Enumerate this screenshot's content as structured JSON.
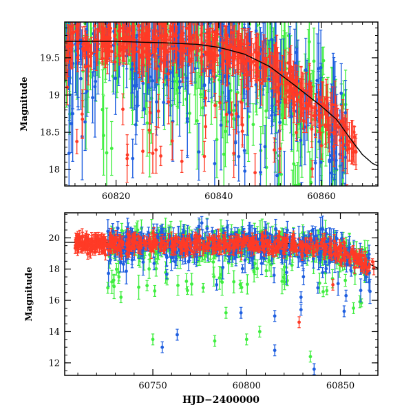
{
  "chart_data": [
    {
      "type": "scatter",
      "panel": "top",
      "title": "",
      "xlabel": "",
      "ylabel": "Magnitude",
      "xlim": [
        60810,
        60871
      ],
      "ylim": [
        19.98,
        17.78
      ],
      "y_inverted": true,
      "x_ticks": [
        60820,
        60840,
        60860
      ],
      "y_ticks": [
        18,
        18.5,
        19,
        19.5
      ],
      "x_ticks_minor_step": 2,
      "y_ticks_minor_step": 0.1,
      "grid": false,
      "series": [
        {
          "color": "#40ee40",
          "role": "green points with error bars"
        },
        {
          "color": "#1f5fe0",
          "role": "blue points with error bars"
        },
        {
          "color": "#ff3a26",
          "role": "red points with error bars"
        }
      ],
      "model_curve": {
        "color": "#000000",
        "x": [
          60810,
          60820,
          60830,
          60836,
          60840,
          60845,
          60850,
          60855,
          60860,
          60863,
          60866,
          60868,
          60870,
          60871
        ],
        "y": [
          19.72,
          19.72,
          19.7,
          19.68,
          19.64,
          19.55,
          19.38,
          19.12,
          18.85,
          18.67,
          18.38,
          18.2,
          18.08,
          18.05
        ]
      }
    },
    {
      "type": "scatter",
      "panel": "bottom",
      "title": "",
      "xlabel": "HJD−2400000",
      "ylabel": "Magnitude",
      "xlim": [
        60703,
        60870
      ],
      "ylim": [
        21.6,
        11.2
      ],
      "y_inverted": true,
      "x_ticks": [
        60750,
        60800,
        60850
      ],
      "y_ticks": [
        12,
        14,
        16,
        18,
        20
      ],
      "x_ticks_minor_step": 10,
      "y_ticks_minor_step": 0.5,
      "grid": false,
      "series": [
        {
          "color": "#40ee40",
          "role": "green points with error bars"
        },
        {
          "color": "#1f5fe0",
          "role": "blue points with error bars"
        },
        {
          "color": "#ff3a26",
          "role": "red points with error bars"
        }
      ],
      "model_curve": {
        "color": "#000000",
        "x": [
          60703,
          60740,
          60780,
          60810,
          60830,
          60845,
          60855,
          60862,
          60866,
          60870
        ],
        "y": [
          19.72,
          19.72,
          19.71,
          19.69,
          19.6,
          19.38,
          19.0,
          18.6,
          18.3,
          18.05
        ]
      },
      "outliers": [
        {
          "series": 1,
          "x": 60836,
          "y": 11.6
        },
        {
          "series": 0,
          "x": 60834,
          "y": 12.4
        },
        {
          "series": 1,
          "x": 60755,
          "y": 13.0
        },
        {
          "series": 0,
          "x": 60750,
          "y": 13.5
        },
        {
          "series": 0,
          "x": 60783,
          "y": 13.4
        },
        {
          "series": 1,
          "x": 60763,
          "y": 13.8
        },
        {
          "series": 1,
          "x": 60815,
          "y": 12.8
        },
        {
          "series": 0,
          "x": 60800,
          "y": 13.5
        },
        {
          "series": 0,
          "x": 60807,
          "y": 14.0
        },
        {
          "series": 1,
          "x": 60815,
          "y": 15.0
        },
        {
          "series": 0,
          "x": 60789,
          "y": 15.2
        },
        {
          "series": 1,
          "x": 60797,
          "y": 15.2
        },
        {
          "series": 2,
          "x": 60828,
          "y": 14.6
        },
        {
          "series": 1,
          "x": 60829,
          "y": 15.4
        },
        {
          "series": 1,
          "x": 60852,
          "y": 15.3
        },
        {
          "series": 0,
          "x": 60857,
          "y": 15.5
        },
        {
          "series": 0,
          "x": 60751,
          "y": 16.6
        },
        {
          "series": 1,
          "x": 60784,
          "y": 17.0
        },
        {
          "series": 1,
          "x": 60829,
          "y": 16.2
        },
        {
          "series": 1,
          "x": 60838,
          "y": 16.8
        },
        {
          "series": 1,
          "x": 60853,
          "y": 16.3
        },
        {
          "series": 2,
          "x": 60846,
          "y": 17.0
        },
        {
          "series": 0,
          "x": 60733,
          "y": 16.2
        },
        {
          "series": 0,
          "x": 60726,
          "y": 16.8
        }
      ]
    }
  ]
}
